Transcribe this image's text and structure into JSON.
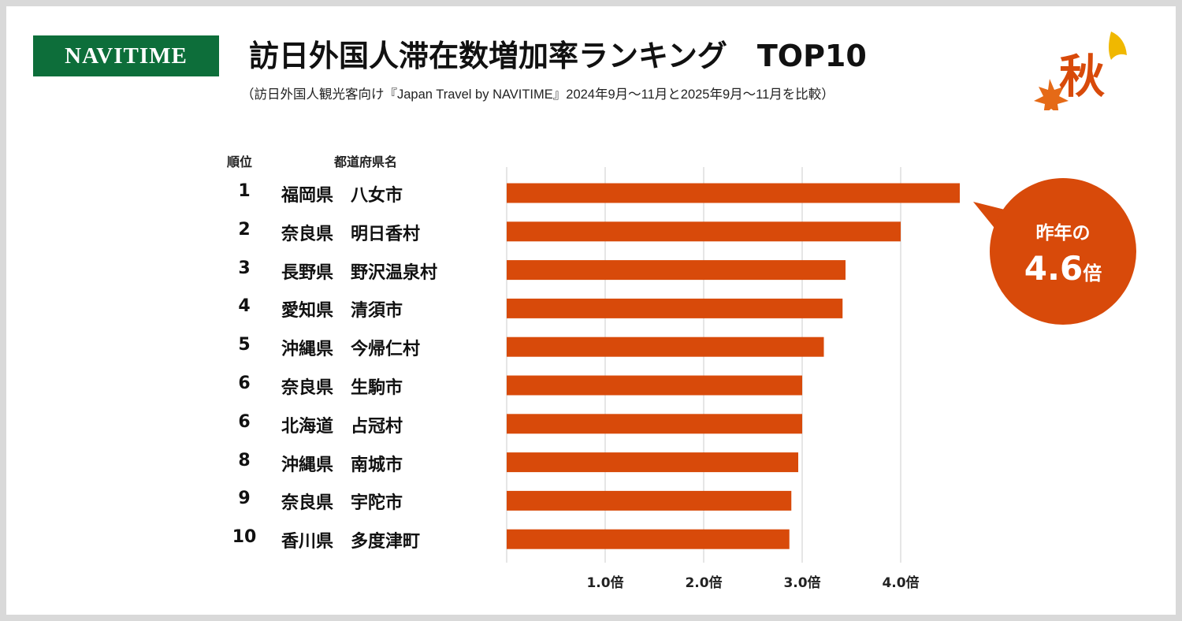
{
  "header": {
    "logo": "NAVITIME",
    "title": "訪日外国人滞在数増加率ランキング　TOP10",
    "subtitle": "（訪日外国人観光客向け『Japan Travel by NAVITIME』2024年9月～11月と2025年9月～11月を比較）",
    "season": "秋"
  },
  "callout": {
    "line1": "昨年の",
    "value": "4.6",
    "unit": "倍"
  },
  "colors": {
    "bar": "#d84a0a",
    "logo": "#0d6e3a",
    "grid": "#dddddd"
  },
  "chart_data": {
    "type": "bar",
    "orientation": "horizontal",
    "column_headers": {
      "rank": "順位",
      "name": "都道府県名"
    },
    "ranks": [
      "1",
      "2",
      "3",
      "4",
      "5",
      "6",
      "6",
      "8",
      "9",
      "10"
    ],
    "categories": [
      "福岡県　八女市",
      "奈良県　明日香村",
      "長野県　野沢温泉村",
      "愛知県　清須市",
      "沖縄県　今帰仁村",
      "奈良県　生駒市",
      "北海道　占冠村",
      "沖縄県　南城市",
      "奈良県　宇陀市",
      "香川県　多度津町"
    ],
    "values": [
      4.6,
      4.0,
      3.44,
      3.41,
      3.22,
      3.0,
      3.0,
      2.96,
      2.89,
      2.87
    ],
    "xlim": [
      0,
      4.8
    ],
    "xticks": [
      1,
      2,
      3,
      4
    ],
    "xtick_labels": [
      "1.0倍",
      "2.0倍",
      "3.0倍",
      "4.0倍"
    ],
    "grid": true
  }
}
